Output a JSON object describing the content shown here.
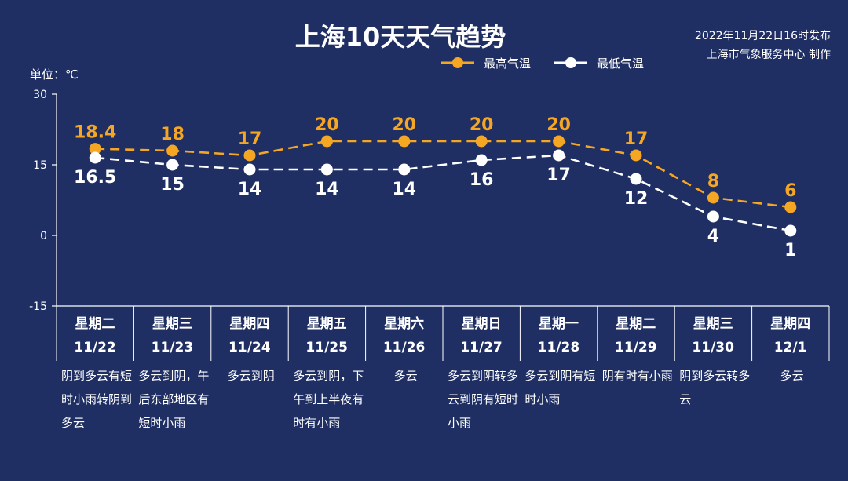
{
  "header": {
    "title": "上海10天天气趋势",
    "publish_time": "2022年11月22日16时发布",
    "publisher": "上海市气象服务中心 制作",
    "unit": "单位：℃"
  },
  "colors": {
    "background": "#1f2f63",
    "max_line": "#f5a623",
    "min_line": "#ffffff"
  },
  "chart_data": {
    "type": "line",
    "ylim": [
      -15,
      30
    ],
    "yticks": [
      "30",
      "15",
      "0",
      "-15"
    ],
    "ytick_values": [
      30,
      15,
      0,
      -15
    ],
    "legend_position": "top",
    "categories": [
      "11/22",
      "11/23",
      "11/24",
      "11/25",
      "11/26",
      "11/27",
      "11/28",
      "11/29",
      "11/30",
      "12/1"
    ],
    "series": [
      {
        "name": "最高气温",
        "values": [
          18.4,
          18,
          17,
          20,
          20,
          20,
          20,
          17,
          8,
          6
        ],
        "labels": [
          "18.4",
          "18",
          "17",
          "20",
          "20",
          "20",
          "20",
          "17",
          "8",
          "6"
        ]
      },
      {
        "name": "最低气温",
        "values": [
          16.5,
          15,
          14,
          14,
          14,
          16,
          17,
          12,
          4,
          1
        ],
        "labels": [
          "16.5",
          "15",
          "14",
          "14",
          "14",
          "16",
          "17",
          "12",
          "4",
          "1"
        ]
      }
    ],
    "days": [
      {
        "weekday": "星期二",
        "date": "11/22",
        "weather": "阴到多云有短时小雨转阴到多云"
      },
      {
        "weekday": "星期三",
        "date": "11/23",
        "weather": "多云到阴，午后东部地区有短时小雨"
      },
      {
        "weekday": "星期四",
        "date": "11/24",
        "weather": "多云到阴"
      },
      {
        "weekday": "星期五",
        "date": "11/25",
        "weather": "多云到阴，下午到上半夜有时有小雨"
      },
      {
        "weekday": "星期六",
        "date": "11/26",
        "weather": "多云"
      },
      {
        "weekday": "星期日",
        "date": "11/27",
        "weather": "多云到阴转多云到阴有短时小雨"
      },
      {
        "weekday": "星期一",
        "date": "11/28",
        "weather": "多云到阴有短时小雨"
      },
      {
        "weekday": "星期二",
        "date": "11/29",
        "weather": "阴有时有小雨"
      },
      {
        "weekday": "星期三",
        "date": "11/30",
        "weather": "阴到多云转多云"
      },
      {
        "weekday": "星期四",
        "date": "12/1",
        "weather": "多云"
      }
    ]
  }
}
